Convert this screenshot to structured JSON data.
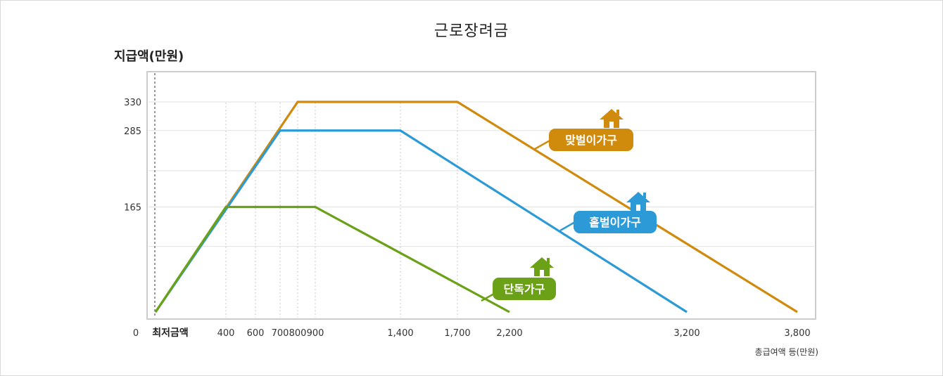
{
  "chart_data": {
    "type": "line",
    "title": "근로장려금",
    "ylabel": "지급액(만원)",
    "xlabel": "총급여액 등(만원)",
    "origin_label": "0",
    "min_wage_label": "최저금액",
    "x_ticks": [
      400,
      600,
      700,
      800,
      900,
      1400,
      1700,
      2200,
      3200,
      3800
    ],
    "x_tick_labels": [
      "400",
      "600",
      "700",
      "800",
      "900",
      "1,400",
      "1,700",
      "2,200",
      "3,200",
      "3,800"
    ],
    "y_ticks": [
      165,
      285,
      330
    ],
    "y_tick_labels": [
      "165",
      "285",
      "330"
    ],
    "xlim": [
      0,
      3800
    ],
    "ylim": [
      0,
      330
    ],
    "grid": true,
    "series": [
      {
        "name": "단독가구",
        "color": "#6aa116",
        "icon": "house-icon",
        "points": [
          [
            0,
            0
          ],
          [
            400,
            165
          ],
          [
            900,
            165
          ],
          [
            2200,
            0
          ]
        ]
      },
      {
        "name": "홑벌이가구",
        "color": "#2b9ad6",
        "icon": "house-icon",
        "points": [
          [
            0,
            0
          ],
          [
            700,
            285
          ],
          [
            1400,
            285
          ],
          [
            3200,
            0
          ]
        ]
      },
      {
        "name": "맞벌이가구",
        "color": "#d08a0c",
        "icon": "house-icon",
        "points": [
          [
            0,
            0
          ],
          [
            800,
            330
          ],
          [
            1700,
            330
          ],
          [
            3800,
            0
          ]
        ]
      }
    ]
  }
}
